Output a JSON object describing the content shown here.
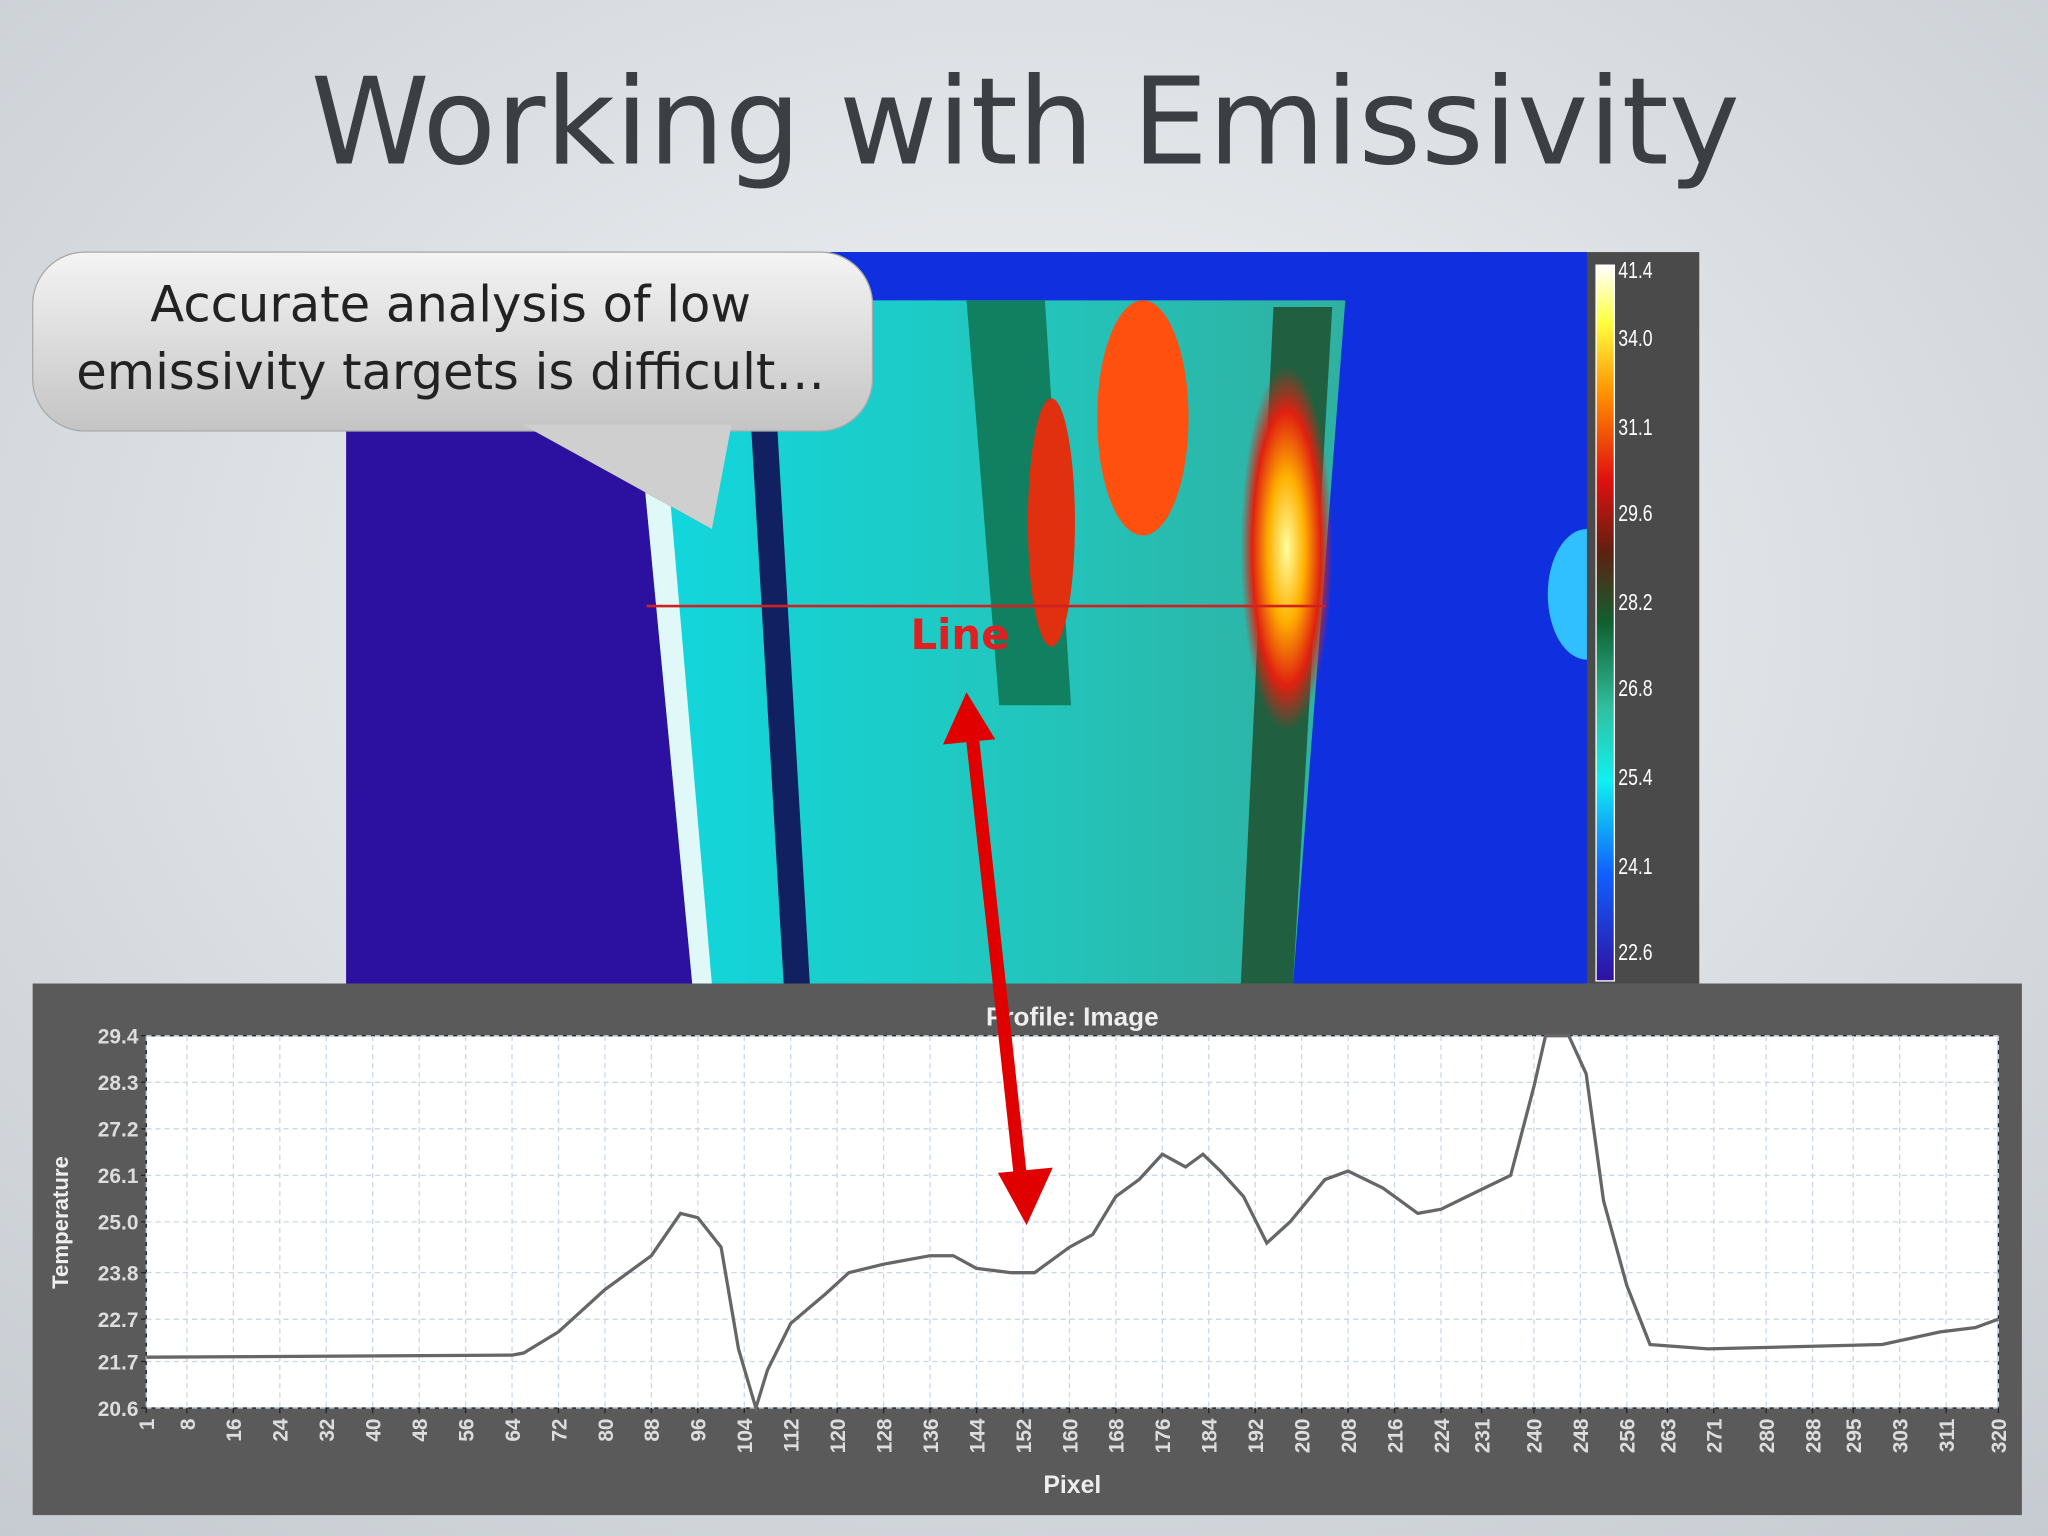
{
  "title": "Working with Emissivity",
  "callout": {
    "lines": [
      "Accurate analysis of low",
      "emissivity targets is difficult…"
    ]
  },
  "thermal_image": {
    "line_label": "Line",
    "scale_labels": [
      "41.4",
      "34.0",
      "31.1",
      "29.6",
      "28.2",
      "26.8",
      "25.4",
      "24.1",
      "22.6"
    ]
  },
  "chart_data": {
    "type": "line",
    "title": "Profile: Image",
    "x_label": "Pixel",
    "y_label": "Temperature",
    "color": "#666666",
    "grid": true,
    "xlim": [
      1,
      320
    ],
    "ylim": [
      20.6,
      29.4
    ],
    "xticks": [
      1,
      8,
      16,
      24,
      32,
      40,
      48,
      56,
      64,
      72,
      80,
      88,
      96,
      104,
      112,
      120,
      128,
      136,
      144,
      152,
      160,
      168,
      176,
      184,
      192,
      200,
      208,
      216,
      224,
      231,
      240,
      248,
      256,
      263,
      271,
      280,
      288,
      295,
      303,
      311,
      320
    ],
    "yticks": [
      20.6,
      21.7,
      22.7,
      23.8,
      {
        "value": 25,
        "label": "25.0"
      },
      26.1,
      27.2,
      28.3,
      29.4
    ],
    "x": [
      1,
      64,
      66,
      72,
      80,
      88,
      93,
      96,
      100,
      103,
      106,
      108,
      112,
      118,
      122,
      128,
      136,
      140,
      144,
      150,
      154,
      160,
      164,
      168,
      172,
      176,
      180,
      183,
      186,
      190,
      194,
      198,
      204,
      208,
      214,
      220,
      224,
      230,
      236,
      240,
      242,
      246,
      249,
      252,
      256,
      260,
      270,
      300,
      310,
      316,
      320
    ],
    "values": [
      21.8,
      21.85,
      21.9,
      22.4,
      23.4,
      24.2,
      25.2,
      25.1,
      24.4,
      22.0,
      20.6,
      21.5,
      22.6,
      23.3,
      23.8,
      24.0,
      24.2,
      24.2,
      23.9,
      23.8,
      23.8,
      24.4,
      24.7,
      25.6,
      26.0,
      26.6,
      26.3,
      26.6,
      26.2,
      25.6,
      24.5,
      25.0,
      26.0,
      26.2,
      25.8,
      25.2,
      25.3,
      25.7,
      26.1,
      28.2,
      29.4,
      29.4,
      28.5,
      25.5,
      23.5,
      22.1,
      22.0,
      22.1,
      22.4,
      22.5,
      22.7
    ]
  }
}
